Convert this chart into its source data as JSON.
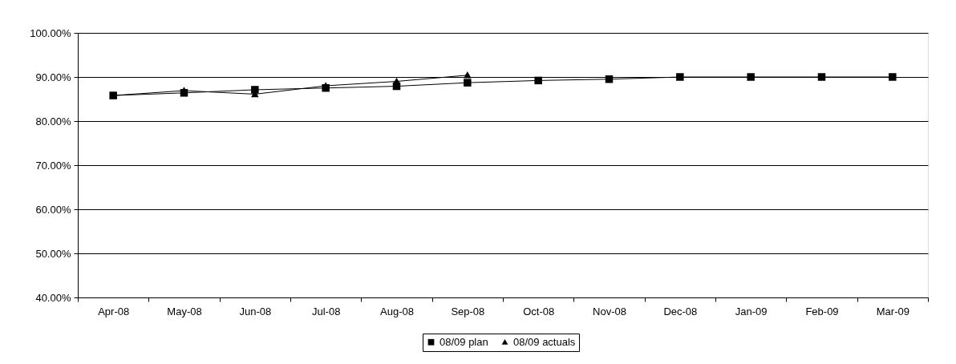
{
  "chart_data": {
    "type": "line",
    "categories": [
      "Apr-08",
      "May-08",
      "Jun-08",
      "Jul-08",
      "Aug-08",
      "Sep-08",
      "Oct-08",
      "Nov-08",
      "Dec-08",
      "Jan-09",
      "Feb-09",
      "Mar-09"
    ],
    "series": [
      {
        "name": "08/09 plan",
        "color": "#000000",
        "marker": "square",
        "values": [
          85.8,
          86.4,
          87.1,
          87.5,
          87.9,
          88.7,
          89.2,
          89.5,
          90,
          90,
          90,
          90
        ]
      },
      {
        "name": "08/09 actuals",
        "color": "#000000",
        "marker": "triangle",
        "values": [
          85.8,
          86.9,
          86.1,
          88.0,
          89.0,
          90.4,
          null,
          null,
          null,
          null,
          null,
          null
        ]
      }
    ],
    "ylim": [
      40,
      100
    ],
    "yticks": [
      {
        "value": 40,
        "label": "40.00%"
      },
      {
        "value": 50,
        "label": "50.00%"
      },
      {
        "value": 60,
        "label": "60.00%"
      },
      {
        "value": 70,
        "label": "70.00%"
      },
      {
        "value": 80,
        "label": "80.00%"
      },
      {
        "value": 90,
        "label": "90.00%"
      },
      {
        "value": 100,
        "label": "100.00%"
      }
    ],
    "grid": "y",
    "legend": "bottom",
    "line_style": "solid"
  }
}
